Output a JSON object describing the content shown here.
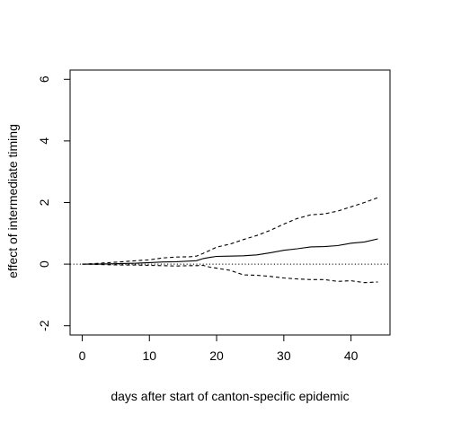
{
  "chart_data": {
    "type": "line",
    "title": "",
    "xlabel": "days after start of canton-specific epidemic",
    "ylabel": "effect of intermediate timing",
    "xlim": [
      -1.8,
      45.8
    ],
    "ylim": [
      -2.3,
      6.3
    ],
    "xticks": [
      0,
      10,
      20,
      30,
      40
    ],
    "yticks": [
      -2,
      0,
      2,
      4,
      6
    ],
    "grid": false,
    "legend": "none",
    "reference_line": {
      "y": 0,
      "style": "dotted"
    },
    "x": [
      0,
      2,
      4,
      6,
      8,
      10,
      12,
      14,
      16,
      17,
      18,
      19,
      20,
      22,
      24,
      26,
      28,
      30,
      32,
      34,
      36,
      38,
      40,
      42,
      44
    ],
    "series": [
      {
        "style": "solid",
        "values": [
          0.0,
          0.0,
          0.01,
          0.02,
          0.03,
          0.05,
          0.07,
          0.08,
          0.1,
          0.11,
          0.18,
          0.22,
          0.25,
          0.26,
          0.27,
          0.3,
          0.37,
          0.45,
          0.5,
          0.56,
          0.57,
          0.6,
          0.68,
          0.72,
          0.82
        ]
      },
      {
        "style": "dashed",
        "values": [
          0.0,
          0.02,
          0.05,
          0.08,
          0.11,
          0.14,
          0.2,
          0.23,
          0.24,
          0.26,
          0.35,
          0.45,
          0.55,
          0.65,
          0.8,
          0.93,
          1.1,
          1.3,
          1.48,
          1.6,
          1.63,
          1.72,
          1.86,
          2.0,
          2.16
        ]
      },
      {
        "style": "dashed",
        "values": [
          0.0,
          -0.01,
          -0.02,
          -0.03,
          -0.03,
          -0.04,
          -0.05,
          -0.06,
          -0.05,
          -0.05,
          -0.04,
          -0.1,
          -0.13,
          -0.2,
          -0.35,
          -0.36,
          -0.4,
          -0.45,
          -0.48,
          -0.5,
          -0.5,
          -0.56,
          -0.54,
          -0.6,
          -0.58
        ]
      }
    ]
  }
}
